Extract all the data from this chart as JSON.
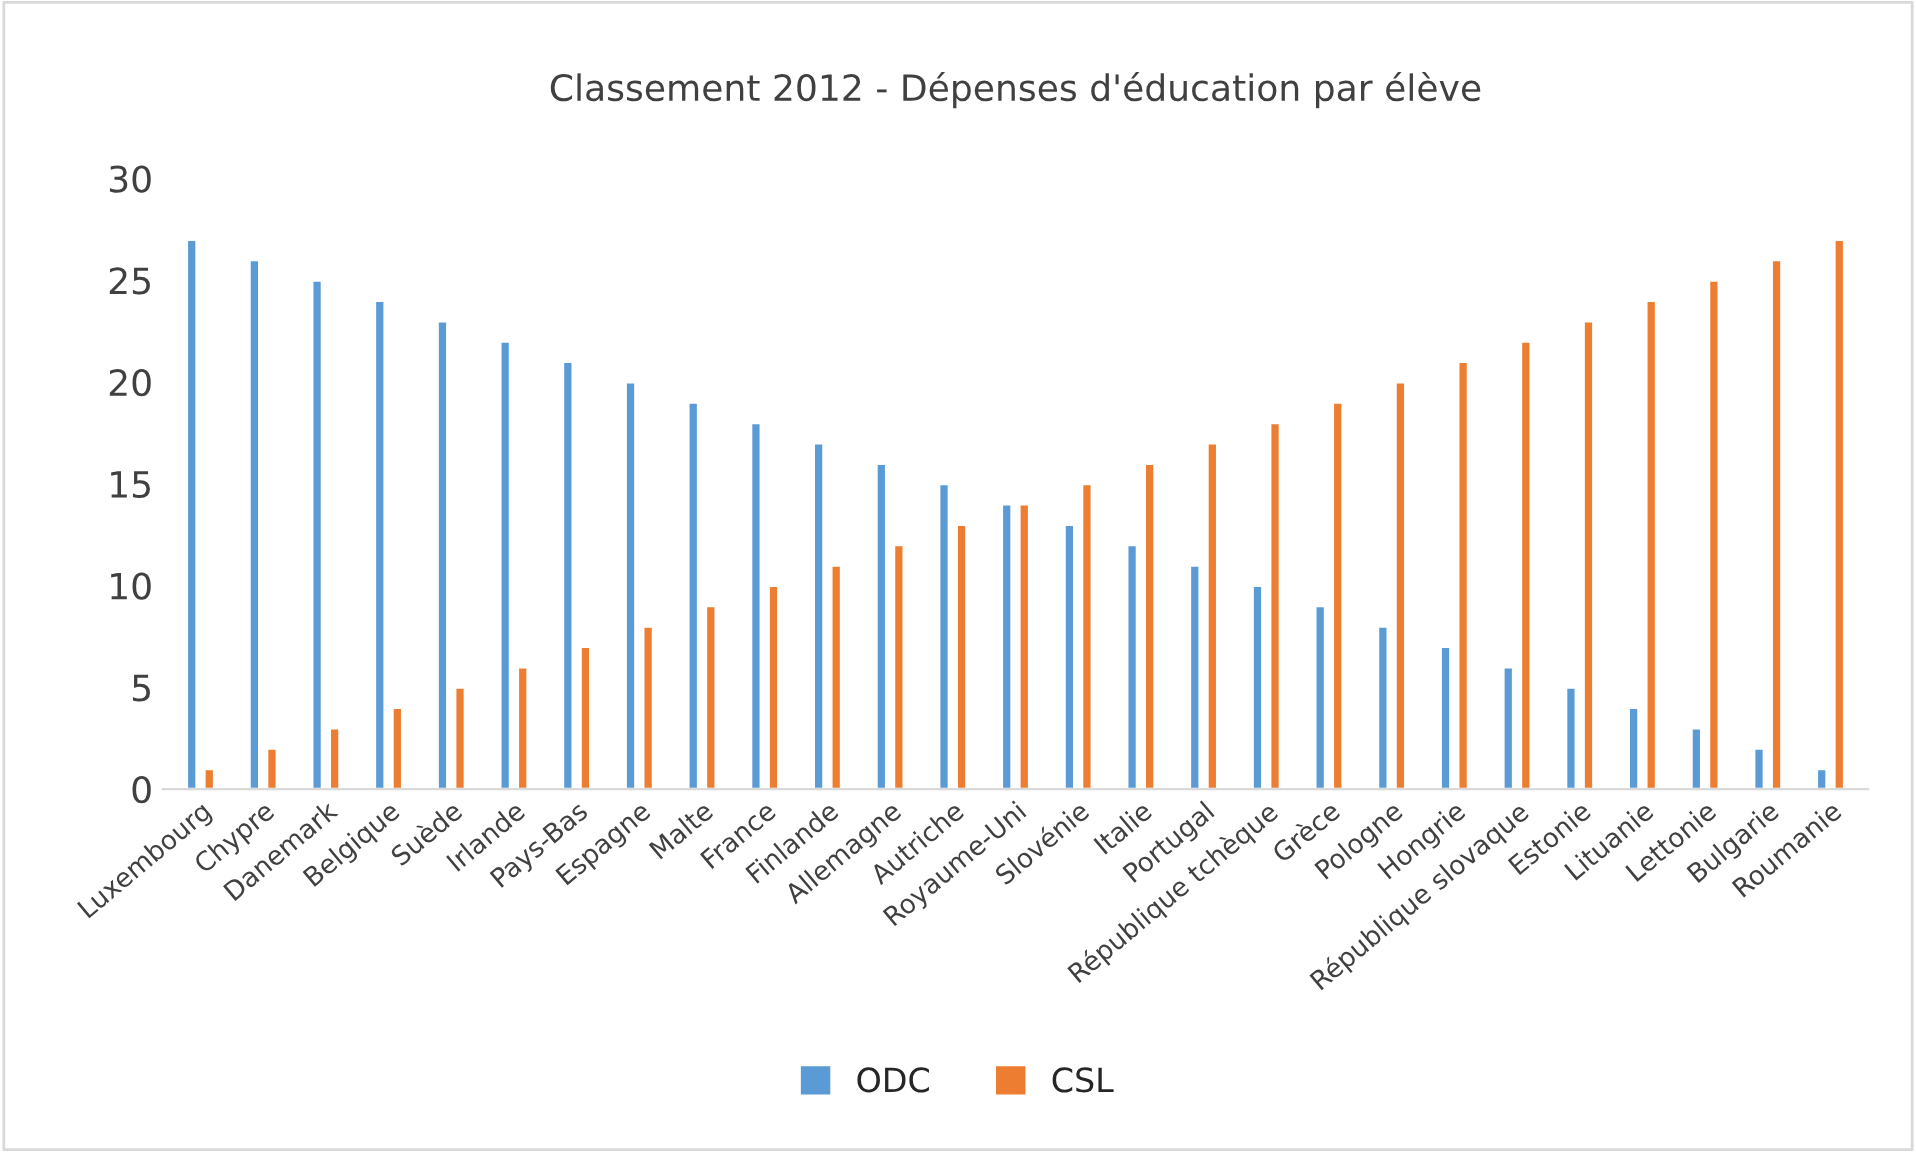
{
  "chart_data": {
    "type": "bar",
    "title": "Classement 2012 - Dépenses d'éducation par élève",
    "categories": [
      "Luxembourg",
      "Chypre",
      "Danemark",
      "Belgique",
      "Suède",
      "Irlande",
      "Pays-Bas",
      "Espagne",
      "Malte",
      "France",
      "Finlande",
      "Allemagne",
      "Autriche",
      "Royaume-Uni",
      "Slovénie",
      "Italie",
      "Portugal",
      "République tchèque",
      "Grèce",
      "Pologne",
      "Hongrie",
      "République slovaque",
      "Estonie",
      "Lituanie",
      "Lettonie",
      "Bulgarie",
      "Roumanie"
    ],
    "series": [
      {
        "name": "ODC",
        "color": "#5b9bd5",
        "values": [
          27,
          26,
          25,
          24,
          23,
          22,
          21,
          20,
          19,
          18,
          17,
          16,
          15,
          14,
          13,
          12,
          11,
          10,
          9,
          8,
          7,
          6,
          5,
          4,
          3,
          2,
          1
        ]
      },
      {
        "name": "CSL",
        "color": "#ed7d31",
        "values": [
          1,
          2,
          3,
          4,
          5,
          6,
          7,
          8,
          9,
          10,
          11,
          12,
          13,
          14,
          15,
          16,
          17,
          18,
          19,
          20,
          21,
          22,
          23,
          24,
          25,
          26,
          27
        ]
      }
    ],
    "ylim": [
      0,
      30
    ],
    "yticks": [
      0,
      5,
      10,
      15,
      20,
      25,
      30
    ],
    "grid": false,
    "legend": "bottom"
  }
}
